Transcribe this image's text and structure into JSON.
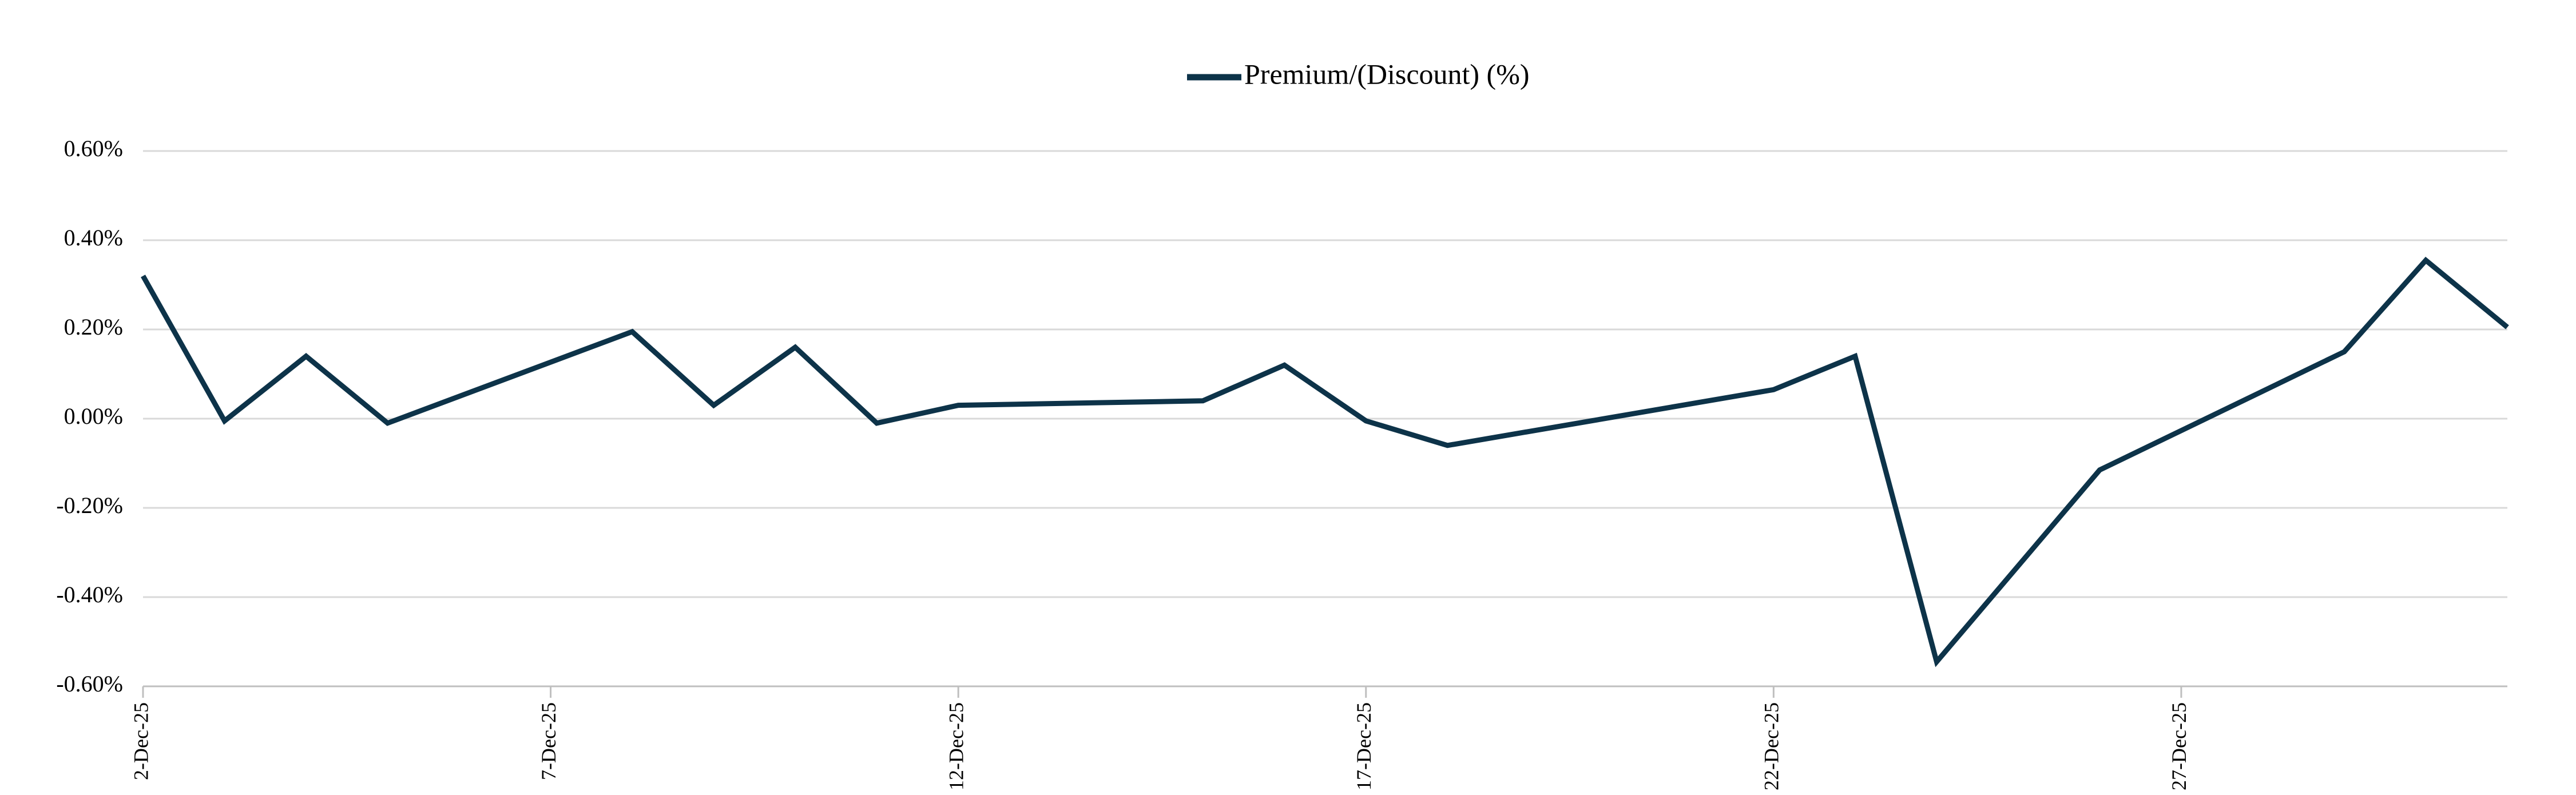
{
  "chart_data": {
    "type": "line",
    "x": [
      "2-Dec-25",
      "3-Dec-25",
      "4-Dec-25",
      "5-Dec-25",
      "8-Dec-25",
      "9-Dec-25",
      "10-Dec-25",
      "11-Dec-25",
      "12-Dec-25",
      "15-Dec-25",
      "16-Dec-25",
      "17-Dec-25",
      "18-Dec-25",
      "22-Dec-25",
      "23-Dec-25",
      "24-Dec-25",
      "26-Dec-25",
      "29-Dec-25",
      "30-Dec-25",
      "31-Dec-25"
    ],
    "series": [
      {
        "name": "Premium/(Discount) (%)",
        "color": "#0d3349",
        "values": [
          0.32,
          -0.005,
          0.14,
          -0.01,
          0.195,
          0.03,
          0.16,
          -0.01,
          0.03,
          0.04,
          0.12,
          -0.005,
          -0.06,
          0.065,
          0.14,
          -0.545,
          -0.115,
          0.15,
          0.355,
          0.205
        ]
      }
    ],
    "xlim": [
      "2-Dec-25",
      "31-Dec-25"
    ],
    "xticks": [
      "2-Dec-25",
      "7-Dec-25",
      "12-Dec-25",
      "17-Dec-25",
      "22-Dec-25",
      "27-Dec-25"
    ],
    "ylim": [
      -0.6,
      0.6
    ],
    "yticks": [
      {
        "value": -0.6,
        "label": "-0.60%"
      },
      {
        "value": -0.4,
        "label": "-0.40%"
      },
      {
        "value": -0.2,
        "label": "-0.20%"
      },
      {
        "value": 0,
        "label": "0.00%"
      },
      {
        "value": 0.2,
        "label": "0.20%"
      },
      {
        "value": 0.4,
        "label": "0.40%"
      },
      {
        "value": 0.6,
        "label": "0.60%"
      }
    ],
    "grid": true,
    "legend": "top"
  }
}
